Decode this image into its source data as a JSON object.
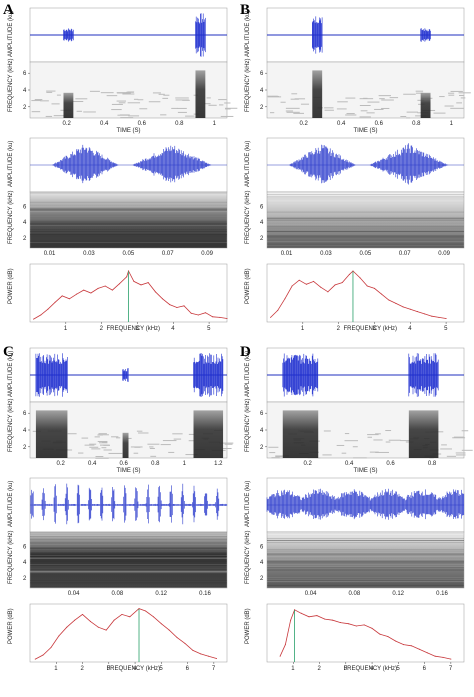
{
  "panels": [
    {
      "label": "A",
      "osc1_ylabel": "AMPLITUDE (ku)",
      "spec1_ylabel": "FREQUENCY (kHz)",
      "spec1_yticks": [
        "2",
        "4",
        "6"
      ],
      "spec1_xlabel": "TIME (S)",
      "spec1_xticks": [
        "0.2",
        "0.4",
        "0.6",
        "0.8",
        "1"
      ],
      "osc2_ylabel": "AMPLITUDE (ku)",
      "spec2_ylabel": "FREQUENCY (kHz)",
      "spec2_yticks": [
        "2",
        "4",
        "6"
      ],
      "spec2_xticks": [
        "0.01",
        "0.03",
        "0.05",
        "0.07",
        "0.09"
      ],
      "power_ylabel": "POWER (dB)",
      "power_xlabel": "FREQUENCY (kHz)",
      "power_xticks": [
        "1",
        "2",
        "3",
        "4",
        "5"
      ]
    },
    {
      "label": "B",
      "osc1_ylabel": "AMPLITUDE (ku)",
      "spec1_ylabel": "FREQUENCY (kHz)",
      "spec1_yticks": [
        "2",
        "4",
        "6"
      ],
      "spec1_xlabel": "TIME (S)",
      "spec1_xticks": [
        "0.2",
        "0.4",
        "0.6",
        "0.8",
        "1"
      ],
      "osc2_ylabel": "AMPLITUDE (ku)",
      "spec2_ylabel": "FREQUENCY (kHz)",
      "spec2_yticks": [
        "2",
        "4",
        "6"
      ],
      "spec2_xticks": [
        "0.01",
        "0.03",
        "0.05",
        "0.07",
        "0.09"
      ],
      "power_ylabel": "POWER (dB)",
      "power_xlabel": "FREQUENCY (kHz)",
      "power_xticks": [
        "1",
        "2",
        "3",
        "4",
        "5"
      ]
    },
    {
      "label": "C",
      "osc1_ylabel": "AMPLITUDE (ku)",
      "spec1_ylabel": "FREQUENCY (kHz)",
      "spec1_yticks": [
        "2",
        "4",
        "6"
      ],
      "spec1_xlabel": "TIME (S)",
      "spec1_xticks": [
        "0.2",
        "0.4",
        "0.6",
        "0.8",
        "1",
        "1.2"
      ],
      "osc2_ylabel": "AMPLITUDE (ku)",
      "spec2_ylabel": "FREQUENCY (kHz)",
      "spec2_yticks": [
        "2",
        "4",
        "6"
      ],
      "spec2_xticks": [
        "0.04",
        "0.08",
        "0.12",
        "0.16"
      ],
      "power_ylabel": "POWER (dB)",
      "power_xlabel": "FREQUENCY (kHz)",
      "power_xticks": [
        "1",
        "2",
        "3",
        "4",
        "5",
        "6",
        "7"
      ]
    },
    {
      "label": "D",
      "osc1_ylabel": "AMPLITUDE (ku)",
      "spec1_ylabel": "FREQUENCY (kHz)",
      "spec1_yticks": [
        "2",
        "4",
        "6"
      ],
      "spec1_xlabel": "TIME (S)",
      "spec1_xticks": [
        "0.2",
        "0.4",
        "0.6",
        "0.8"
      ],
      "osc2_ylabel": "AMPLITUDE (ku)",
      "spec2_ylabel": "FREQUENCY (kHz)",
      "spec2_yticks": [
        "2",
        "4",
        "6"
      ],
      "spec2_xticks": [
        "0.04",
        "0.08",
        "0.12",
        "0.16"
      ],
      "power_ylabel": "POWER (dB)",
      "power_xlabel": "FREQUENCY (kHz)",
      "power_xticks": [
        "1",
        "2",
        "3",
        "4",
        "5",
        "6",
        "7"
      ]
    }
  ],
  "chart_data": [
    {
      "panel": "A",
      "type": "line",
      "ylabel": "POWER (dB)",
      "xlabel": "FREQUENCY (kHz)",
      "xlim": [
        0,
        5.5
      ],
      "peak_frequency_khz": 2.75,
      "x": [
        0.1,
        0.3,
        0.5,
        0.7,
        0.9,
        1.1,
        1.3,
        1.5,
        1.7,
        1.9,
        2.1,
        2.3,
        2.5,
        2.7,
        2.75,
        2.9,
        3.1,
        3.3,
        3.5,
        3.7,
        3.9,
        4.1,
        4.3,
        4.5,
        4.7,
        4.9,
        5.1,
        5.3,
        5.5
      ],
      "y": [
        5,
        12,
        22,
        34,
        45,
        40,
        48,
        55,
        50,
        58,
        62,
        55,
        66,
        78,
        88,
        70,
        64,
        68,
        52,
        40,
        30,
        25,
        28,
        15,
        12,
        16,
        9,
        8,
        6
      ]
    },
    {
      "panel": "B",
      "type": "line",
      "ylabel": "POWER (dB)",
      "xlabel": "FREQUENCY (kHz)",
      "xlim": [
        0,
        5.5
      ],
      "peak_frequency_khz": 2.4,
      "x": [
        0.1,
        0.3,
        0.5,
        0.7,
        0.9,
        1.1,
        1.3,
        1.5,
        1.7,
        1.9,
        2.1,
        2.3,
        2.4,
        2.6,
        2.8,
        3.0,
        3.2,
        3.4,
        3.6,
        3.8,
        4.0,
        4.2,
        4.4,
        4.6,
        4.8,
        5.0
      ],
      "y": [
        8,
        20,
        40,
        62,
        72,
        65,
        70,
        60,
        52,
        64,
        68,
        82,
        88,
        76,
        62,
        58,
        48,
        38,
        32,
        26,
        22,
        18,
        14,
        10,
        8,
        6
      ]
    },
    {
      "panel": "C",
      "type": "line",
      "ylabel": "POWER (dB)",
      "xlabel": "FREQUENCY (kHz)",
      "xlim": [
        0,
        7.5
      ],
      "peak_frequency_khz": 4.15,
      "x": [
        0.2,
        0.5,
        0.8,
        1.1,
        1.4,
        1.7,
        2.0,
        2.3,
        2.6,
        2.9,
        3.2,
        3.5,
        3.8,
        4.15,
        4.4,
        4.7,
        5.0,
        5.3,
        5.6,
        5.9,
        6.2,
        6.5,
        6.8,
        7.1
      ],
      "y": [
        5,
        12,
        25,
        45,
        60,
        72,
        82,
        70,
        60,
        55,
        72,
        82,
        78,
        92,
        88,
        78,
        66,
        55,
        42,
        32,
        20,
        14,
        10,
        6
      ]
    },
    {
      "panel": "D",
      "type": "line",
      "ylabel": "POWER (dB)",
      "xlabel": "FREQUENCY (kHz)",
      "xlim": [
        0,
        7.5
      ],
      "peak_frequency_khz": 1.05,
      "x": [
        0.5,
        0.7,
        0.9,
        1.05,
        1.3,
        1.6,
        1.9,
        2.2,
        2.5,
        2.8,
        3.1,
        3.4,
        3.7,
        4.0,
        4.3,
        4.6,
        4.9,
        5.2,
        5.5,
        5.8,
        6.1,
        6.4,
        6.7,
        7.0
      ],
      "y": [
        10,
        30,
        72,
        90,
        84,
        78,
        80,
        74,
        72,
        68,
        66,
        62,
        64,
        58,
        48,
        44,
        36,
        30,
        28,
        22,
        16,
        10,
        8,
        5
      ]
    }
  ]
}
